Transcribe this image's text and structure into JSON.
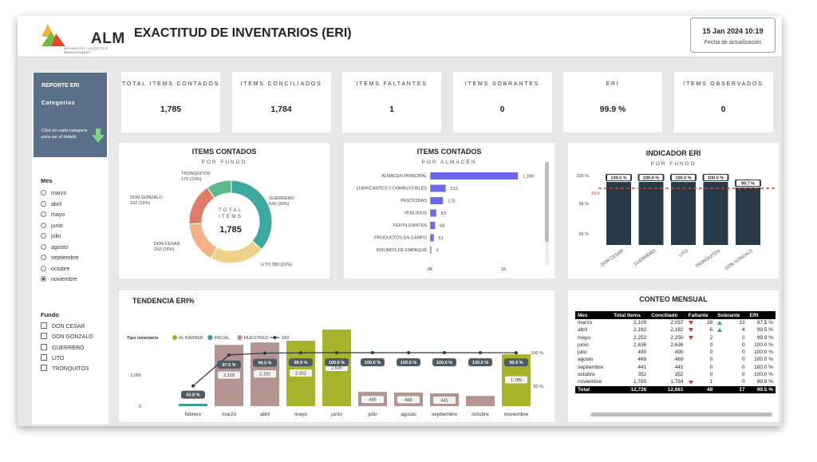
{
  "header": {
    "logo_text": "ALM",
    "logo_subtitle": "ADVANCED LOGISTICS MANAGEMENT",
    "title": "EXACTITUD DE INVENTARIOS (ERI)",
    "date": "15 Jan 2024 10:19",
    "date_caption": "Fecha de actualización"
  },
  "side": {
    "report_title": "REPORTE ERI",
    "report_category": "Categorías",
    "report_hint": "Click en cada categoría para ver el detalle",
    "mes_title": "Mes",
    "months": [
      "marzo",
      "abril",
      "mayo",
      "junio",
      "julio",
      "agosto",
      "septiembre",
      "octubre",
      "noviembre"
    ],
    "selected_month": "noviembre",
    "fundo_title": "Fundo",
    "fundos": [
      "DON CESAR",
      "DON GONZALO",
      "GUERRERO",
      "LITO",
      "TRONQUITOS"
    ]
  },
  "kpis": [
    {
      "label": "TOTAL ITEMS CONTADOS",
      "value": "1,785"
    },
    {
      "label": "ITEMS CONCILIADOS",
      "value": "1,784"
    },
    {
      "label": "ITEMS FALTANTES",
      "value": "1"
    },
    {
      "label": "ITEMS SOBRANTES",
      "value": "0"
    },
    {
      "label": "ERI",
      "value": "99.9 %"
    },
    {
      "label": "ITEMS OBSERVADOS",
      "value": "0"
    }
  ],
  "donut": {
    "title": "ITEMS CONTADOS",
    "subtitle": "POR FUNDO",
    "center_label": "TOTAL ITEMS",
    "center_value": "1,785",
    "slices": [
      {
        "name": "GUERRERO",
        "value": 646,
        "label": "GUERRERO\n646 (36%)",
        "color": "#3ba99c"
      },
      {
        "name": "LITO",
        "value": 380,
        "label": "LITO 380 (21%)",
        "color": "#f0d18a"
      },
      {
        "name": "DON CESAR",
        "value": 292,
        "label": "DON CESAR\n292 (16%)",
        "color": "#f4b183"
      },
      {
        "name": "DON GONZALO",
        "value": 292,
        "label": "DON GONZALO\n292 (16%)",
        "color": "#e07b6a"
      },
      {
        "name": "TRONQUITOS",
        "value": 175,
        "label": "TRONQUITOS\n175 (10%)",
        "color": "#5cb88f"
      }
    ]
  },
  "almacen": {
    "title": "ITEMS CONTADOS",
    "subtitle": "POR ALMACÉN",
    "categories": [
      "ALMACEN PRINCIPAL",
      "LUBRICANTES Y COMBUSTIBLES",
      "PESTICIDAS",
      "VENCIDOS",
      "FERTILIZANTES",
      "PRODUCTOS EN CAMPO",
      "INSUMOS DE EMPAQUE"
    ],
    "values": [
      1188,
      210,
      175,
      83,
      68,
      51,
      9
    ],
    "value_labels": [
      "1,188",
      "210",
      "175",
      "83",
      "68",
      "51",
      "9"
    ],
    "x_ticks": [
      "0K",
      "1K"
    ],
    "color": "#6b6bea"
  },
  "indicador": {
    "title": "INDICADOR ERI",
    "subtitle": "POR FUNDO",
    "categories": [
      "DON CESAR",
      "GUERRERO",
      "LITO",
      "TRONQUITOS",
      "DON GONZALO"
    ],
    "values": [
      100.0,
      100.0,
      100.0,
      100.0,
      99.7
    ],
    "value_labels": [
      "100.0 %",
      "100.0 %",
      "100.0 %",
      "100.0 %",
      "99.7 %"
    ],
    "y_ticks": [
      "100 %",
      "98 %",
      "96 %"
    ],
    "target_label": "99.8",
    "bar_color": "#263a4a",
    "target_color": "#e0452f"
  },
  "chart_data": [
    {
      "type": "pie",
      "title": "ITEMS CONTADOS",
      "subtitle": "POR FUNDO",
      "categories": [
        "GUERRERO",
        "LITO",
        "DON CESAR",
        "DON GONZALO",
        "TRONQUITOS"
      ],
      "values": [
        646,
        380,
        292,
        292,
        175
      ]
    },
    {
      "type": "bar",
      "title": "ITEMS CONTADOS",
      "subtitle": "POR ALMACÉN",
      "categories": [
        "ALMACEN PRINCIPAL",
        "LUBRICANTES Y COMBUSTIBLES",
        "PESTICIDAS",
        "VENCIDOS",
        "FERTILIZANTES",
        "PRODUCTOS EN CAMPO",
        "INSUMOS DE EMPAQUE"
      ],
      "values": [
        1188,
        210,
        175,
        83,
        68,
        51,
        9
      ],
      "xlim": [
        0,
        1200
      ]
    },
    {
      "type": "bar",
      "title": "INDICADOR ERI",
      "subtitle": "POR FUNDO",
      "categories": [
        "DON CESAR",
        "GUERRERO",
        "LITO",
        "TRONQUITOS",
        "DON GONZALO"
      ],
      "values": [
        100.0,
        100.0,
        100.0,
        100.0,
        99.7
      ],
      "target": 99.8,
      "ylim": [
        95,
        100
      ]
    },
    {
      "type": "bar",
      "title": "TENDENCIA ERI%",
      "categories": [
        "febrero",
        "marzo",
        "abril",
        "mayo",
        "junio",
        "julio",
        "agosto",
        "septiembre",
        "octubre",
        "noviembre"
      ],
      "series": [
        {
          "name": "AL BARRER",
          "values": [
            null,
            null,
            null,
            2252,
            2636,
            null,
            null,
            null,
            null,
            1785
          ]
        },
        {
          "name": "INICIAL",
          "values": [
            13,
            null,
            null,
            null,
            null,
            null,
            null,
            null,
            null,
            null
          ]
        },
        {
          "name": "MUESTREO",
          "values": [
            null,
            2109,
            2192,
            null,
            null,
            490,
            469,
            441,
            352,
            null
          ]
        },
        {
          "name": "ERI",
          "values": [
            63.8,
            97.5,
            99.5,
            99.9,
            100.0,
            100.0,
            100.0,
            100.0,
            100.0,
            99.9
          ]
        }
      ],
      "y_ticks_left": [
        "2,000",
        "0"
      ],
      "y_ticks_right": [
        "100 %",
        "50 %"
      ]
    }
  ],
  "tendencia": {
    "title": "TENDENCIA ERI%",
    "legend_title": "Tipo inventario",
    "legend": [
      {
        "name": "AL BARRER",
        "color": "#a8b22a"
      },
      {
        "name": "INICIAL",
        "color": "#3a9f94"
      },
      {
        "name": "MUESTREO",
        "color": "#b39491"
      },
      {
        "name": "ERI",
        "color": "#263a4a"
      }
    ],
    "months": [
      "febrero",
      "marzo",
      "abril",
      "mayo",
      "junio",
      "julio",
      "agosto",
      "septiembre",
      "octubre",
      "noviembre"
    ],
    "bar_values": [
      13,
      2109,
      2192,
      2252,
      2636,
      490,
      469,
      441,
      352,
      1785
    ],
    "bar_labels": [
      "",
      "2,109",
      "2,192",
      "2,252",
      "2,636",
      "490",
      "469",
      "441",
      "",
      "1,785"
    ],
    "bar_types": [
      "INICIAL",
      "MUESTREO",
      "MUESTREO",
      "AL BARRER",
      "AL BARRER",
      "MUESTREO",
      "MUESTREO",
      "MUESTREO",
      "MUESTREO",
      "AL BARRER"
    ],
    "eri_values": [
      63.8,
      97.5,
      99.5,
      99.9,
      100.0,
      100.0,
      100.0,
      100.0,
      100.0,
      99.9
    ],
    "eri_labels": [
      "63.8 %",
      "97.5 %",
      "99.5 %",
      "99.9 %",
      "100.0 %",
      "100.0 %",
      "100.0 %",
      "100.0 %",
      "100.0 %",
      "99.9 %"
    ],
    "y_ticks_left": [
      "2,000",
      "0"
    ],
    "y_ticks_right": [
      "100 %",
      "50 %"
    ]
  },
  "conteo": {
    "title": "CONTEO MENSUAL",
    "headers": [
      "Mes",
      "Total Items",
      "Conciliado",
      "Faltante",
      "Sobrante",
      "ERI"
    ],
    "rows": [
      {
        "mes": "marzo",
        "total": "2,109",
        "conc": "2,057",
        "falt": "39",
        "falt_ind": "down",
        "sobr": "13",
        "sobr_ind": "up",
        "eri": "97.5 %"
      },
      {
        "mes": "abril",
        "total": "2,192",
        "conc": "2,182",
        "falt": "6",
        "falt_ind": "down",
        "sobr": "4",
        "sobr_ind": "up",
        "eri": "99.5 %"
      },
      {
        "mes": "mayo",
        "total": "2,252",
        "conc": "2,250",
        "falt": "2",
        "falt_ind": "down",
        "sobr": "0",
        "sobr_ind": "",
        "eri": "99.9 %"
      },
      {
        "mes": "junio",
        "total": "2,636",
        "conc": "2,636",
        "falt": "0",
        "falt_ind": "",
        "sobr": "0",
        "sobr_ind": "",
        "eri": "100.0 %"
      },
      {
        "mes": "julio",
        "total": "490",
        "conc": "490",
        "falt": "0",
        "falt_ind": "",
        "sobr": "0",
        "sobr_ind": "",
        "eri": "100.0 %"
      },
      {
        "mes": "agosto",
        "total": "469",
        "conc": "469",
        "falt": "0",
        "falt_ind": "",
        "sobr": "0",
        "sobr_ind": "",
        "eri": "100.0 %"
      },
      {
        "mes": "septiembre",
        "total": "441",
        "conc": "441",
        "falt": "0",
        "falt_ind": "",
        "sobr": "0",
        "sobr_ind": "",
        "eri": "100.0 %"
      },
      {
        "mes": "octubre",
        "total": "352",
        "conc": "352",
        "falt": "0",
        "falt_ind": "",
        "sobr": "0",
        "sobr_ind": "",
        "eri": "100.0 %"
      },
      {
        "mes": "noviembre",
        "total": "1,785",
        "conc": "1,784",
        "falt": "1",
        "falt_ind": "down",
        "sobr": "0",
        "sobr_ind": "",
        "eri": "99.9 %"
      }
    ],
    "total": {
      "mes": "Total",
      "total": "12,726",
      "conc": "12,661",
      "falt": "48",
      "sobr": "17",
      "eri": "99.5 %"
    }
  }
}
